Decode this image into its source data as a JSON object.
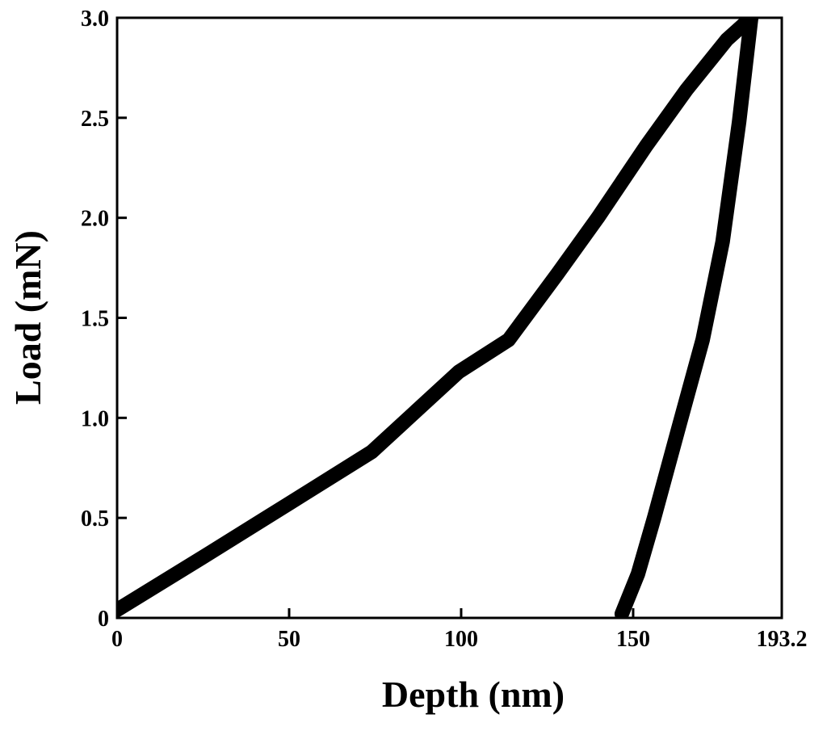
{
  "chart_data": {
    "type": "line",
    "x_label": "Depth (nm)",
    "y_label": "Load (mN)",
    "xlim": [
      0,
      193.2
    ],
    "ylim": [
      0,
      3
    ],
    "xticks": [
      0,
      50,
      100,
      150,
      193.2
    ],
    "yticks": [
      0,
      0.5,
      {
        "value": 1,
        "label": "1.0"
      },
      1.5,
      {
        "value": 2,
        "label": "2.0"
      },
      2.5,
      {
        "value": 3,
        "label": "3.0"
      }
    ],
    "series": [
      {
        "color": "#000000",
        "x": [
          0,
          24.6,
          49.8,
          74,
          99.3,
          113.8,
          128,
          139.7,
          153.8,
          165.5,
          177.2,
          184.3
        ],
        "values": [
          0.04,
          0.3,
          0.57,
          0.83,
          1.23,
          1.39,
          1.72,
          2.0,
          2.36,
          2.64,
          2.89,
          3.0
        ]
      },
      {
        "color": "#000000",
        "x": [
          184.3,
          180.8,
          176,
          170.2,
          163.2,
          156.1,
          151.4,
          146.7
        ],
        "values": [
          3.0,
          2.48,
          1.88,
          1.39,
          0.95,
          0.5,
          0.22,
          0.02
        ]
      }
    ]
  }
}
